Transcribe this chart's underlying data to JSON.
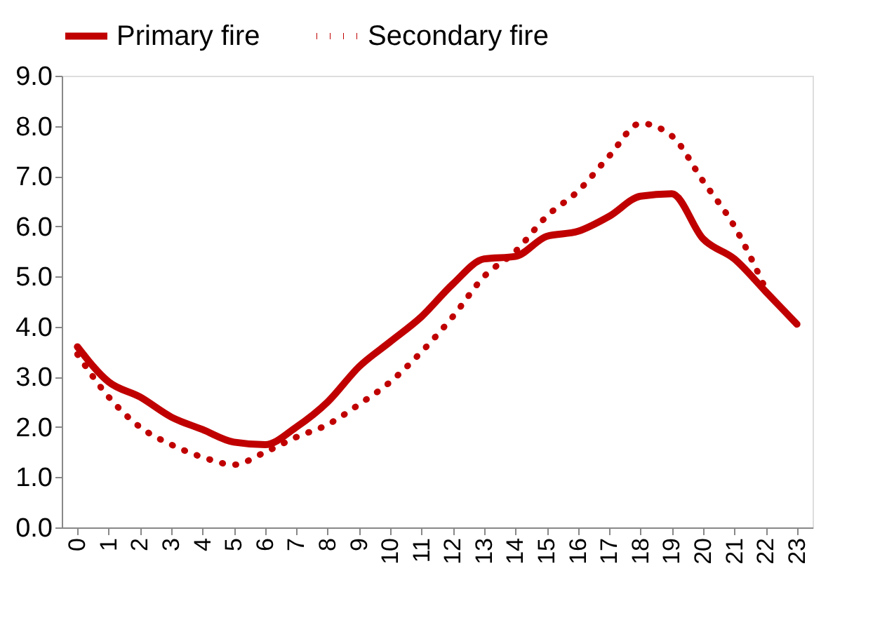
{
  "chart_data": {
    "type": "line",
    "categories": [
      "0",
      "1",
      "2",
      "3",
      "4",
      "5",
      "6",
      "7",
      "8",
      "9",
      "10",
      "11",
      "12",
      "13",
      "14",
      "15",
      "16",
      "17",
      "18",
      "19",
      "20",
      "21",
      "22",
      "23"
    ],
    "series": [
      {
        "name": "Primary fire",
        "color": "#c00000",
        "line_style": "solid",
        "values": [
          3.6,
          2.9,
          2.6,
          2.2,
          1.95,
          1.7,
          1.65,
          2.0,
          2.5,
          3.2,
          3.7,
          4.2,
          4.85,
          5.35,
          5.4,
          5.8,
          5.9,
          6.2,
          6.6,
          6.65,
          5.75,
          5.35,
          4.7,
          4.05
        ]
      },
      {
        "name": "Secondary fire",
        "color": "#c00000",
        "line_style": "dotted",
        "values": [
          3.45,
          2.6,
          2.0,
          1.65,
          1.4,
          1.25,
          1.5,
          1.8,
          2.05,
          2.45,
          2.9,
          3.5,
          4.2,
          5.0,
          5.5,
          6.2,
          6.7,
          7.4,
          8.05,
          7.8,
          6.9,
          6.0,
          4.75,
          null
        ]
      }
    ],
    "ylim": [
      0,
      9
    ],
    "yticks": [
      {
        "value": 0,
        "label": "0.0"
      },
      {
        "value": 1,
        "label": "1.0"
      },
      {
        "value": 2,
        "label": "2.0"
      },
      {
        "value": 3,
        "label": "3.0"
      },
      {
        "value": 4,
        "label": "4.0"
      },
      {
        "value": 5,
        "label": "5.0"
      },
      {
        "value": 6,
        "label": "6.0"
      },
      {
        "value": 7,
        "label": "7.0"
      },
      {
        "value": 8,
        "label": "8.0"
      },
      {
        "value": 9,
        "label": "9.0"
      }
    ],
    "grid": false,
    "legend": "top",
    "marker": "none"
  }
}
